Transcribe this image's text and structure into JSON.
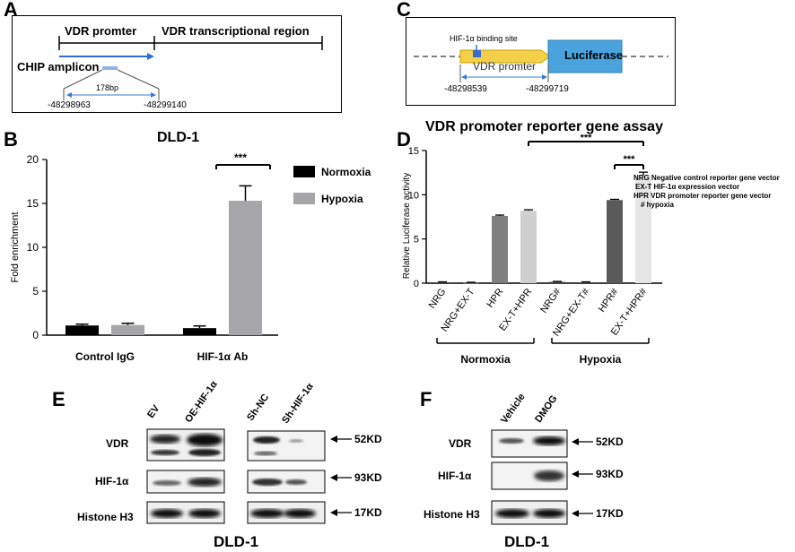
{
  "panelA": {
    "label": "A",
    "promoter": "VDR promter",
    "transcriptional": "VDR transcriptional region",
    "chip": "CHIP amplicon",
    "bp": "178bp",
    "pos_left": "-48298963",
    "pos_right": "-48299140"
  },
  "panelB": {
    "label": "B",
    "chart_data": {
      "type": "bar",
      "title": "DLD-1",
      "ylabel": "Fold enrichment",
      "ylim": [
        0,
        20
      ],
      "yticks": [
        "0",
        "5",
        "10",
        "15",
        "20"
      ],
      "categories": [
        "Control IgG",
        "HIF-1α Ab"
      ],
      "series": [
        {
          "name": "Normoxia",
          "color": "#000000",
          "values": [
            1.1,
            0.8
          ],
          "errors": [
            0.15,
            0.25
          ]
        },
        {
          "name": "Hypoxia",
          "color": "#a6a6a8",
          "values": [
            1.15,
            15.3
          ],
          "errors": [
            0.2,
            1.7
          ]
        }
      ],
      "significance": "***"
    }
  },
  "panelC": {
    "label": "C",
    "site": "HIF-1α binding site",
    "promoter": "VDR promter",
    "luciferase": "Luciferase",
    "pos_left": "-48298539",
    "pos_right": "-48299719"
  },
  "panelD": {
    "label": "D",
    "chart_data": {
      "type": "bar",
      "title": "VDR promoter reporter gene assay",
      "ylabel": "Relative Luciferase activity",
      "ylim": [
        0,
        15
      ],
      "yticks": [
        "0",
        "5",
        "10",
        "15"
      ],
      "categories": [
        "NRG",
        "NRG+EX-T",
        "HPR",
        "EX-T+HPR",
        "NRG#",
        "NRG+EX-T#",
        "HPR#",
        "EX-T+HPR#"
      ],
      "values": [
        0.1,
        0.05,
        7.6,
        8.2,
        0.15,
        0.1,
        9.4,
        12.2
      ],
      "errors": [
        0.05,
        0.05,
        0.1,
        0.1,
        0.05,
        0.05,
        0.08,
        0.35
      ],
      "colors": [
        "#4a4a4a",
        "#4a4a4a",
        "#7f7f7f",
        "#cfcfcf",
        "#4a4a4a",
        "#4a4a4a",
        "#5a5a5a",
        "#e6e6e6"
      ],
      "groups": [
        "Normoxia",
        "Hypoxia"
      ],
      "significance": [
        "***",
        "***"
      ],
      "legend": [
        "NRG Negative control reporter gene vector",
        "EX-T HIF-1α expression vector",
        "HPR VDR promoter reporter gene vector",
        "# hypoxia"
      ]
    }
  },
  "panelE": {
    "label": "E",
    "lanes_left": [
      "EV",
      "OE-HIF-1α"
    ],
    "lanes_right": [
      "Sh-NC",
      "Sh-HIF-1α"
    ],
    "rows": [
      "VDR",
      "HIF-1α",
      "Histone H3"
    ],
    "markers": [
      "52KD",
      "93KD",
      "17KD"
    ],
    "cell": "DLD-1"
  },
  "panelF": {
    "label": "F",
    "lanes": [
      "Vehicle",
      "DMOG"
    ],
    "rows": [
      "VDR",
      "HIF-1α",
      "Histone H3"
    ],
    "markers": [
      "52KD",
      "93KD",
      "17KD"
    ],
    "cell": "DLD-1"
  }
}
